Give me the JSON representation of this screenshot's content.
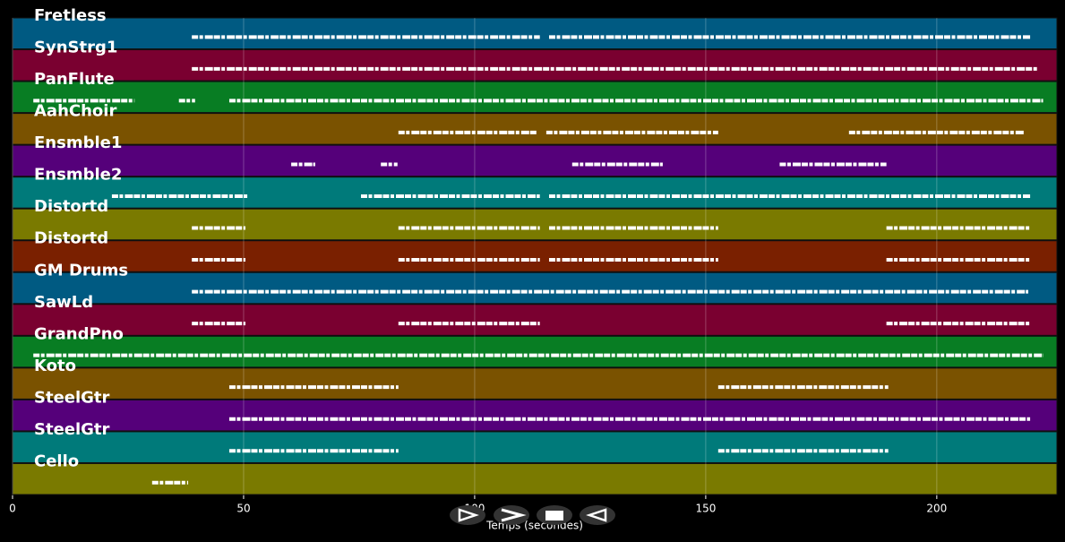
{
  "chart_data": {
    "type": "pianoroll",
    "xlabel": "Temps (secondes)",
    "xlim": [
      0,
      226
    ],
    "xticks": [
      0,
      50,
      100,
      150,
      200
    ],
    "grid": true,
    "tracks": [
      {
        "name": "Fretless",
        "color": "#005a82",
        "segments": [
          [
            38.8,
            114.1
          ],
          [
            116.1,
            220.2
          ]
        ]
      },
      {
        "name": "SynStrg1",
        "color": "#7a0030",
        "segments": [
          [
            38.8,
            222
          ]
        ]
      },
      {
        "name": "PanFlute",
        "color": "#087d23",
        "segments": [
          [
            4.5,
            26.4
          ],
          [
            36,
            39.5
          ],
          [
            46.9,
            223
          ]
        ]
      },
      {
        "name": "AahChoir",
        "color": "#7a5200",
        "segments": [
          [
            83.5,
            113.6
          ],
          [
            115.5,
            152.7
          ],
          [
            181,
            218.8
          ]
        ]
      },
      {
        "name": "Ensmble1",
        "color": "#55007a",
        "segments": [
          [
            60.3,
            65.5
          ],
          [
            79.7,
            83.3
          ],
          [
            121.1,
            140.7
          ],
          [
            166,
            189.1
          ]
        ]
      },
      {
        "name": "Ensmble2",
        "color": "#007a7a",
        "segments": [
          [
            21.5,
            50.8
          ],
          [
            75.4,
            114.1
          ],
          [
            116.1,
            220.2
          ]
        ]
      },
      {
        "name": "Distortd",
        "color": "#7a7a00",
        "segments": [
          [
            38.8,
            50.4
          ],
          [
            83.5,
            114.1
          ],
          [
            116.1,
            152.7
          ],
          [
            189.1,
            220.2
          ]
        ]
      },
      {
        "name": "Distortd",
        "color": "#7a2000",
        "segments": [
          [
            38.8,
            50.4
          ],
          [
            83.5,
            114.1
          ],
          [
            116.1,
            152.7
          ],
          [
            189.1,
            220.2
          ]
        ]
      },
      {
        "name": "GM Drums",
        "color": "#005a82",
        "segments": [
          [
            38.8,
            219.8
          ]
        ]
      },
      {
        "name": "SawLd",
        "color": "#7a0030",
        "segments": [
          [
            38.8,
            50.4
          ],
          [
            83.5,
            114.1
          ],
          [
            189.1,
            220.2
          ]
        ]
      },
      {
        "name": "GrandPno",
        "color": "#087d23",
        "segments": [
          [
            4.5,
            223
          ]
        ]
      },
      {
        "name": "Koto",
        "color": "#7a5200",
        "segments": [
          [
            46.9,
            83.5
          ],
          [
            152.7,
            189.5
          ]
        ]
      },
      {
        "name": "SteelGtr",
        "color": "#55007a",
        "segments": [
          [
            46.9,
            220.2
          ]
        ]
      },
      {
        "name": "SteelGtr",
        "color": "#007a7a",
        "segments": [
          [
            46.9,
            83.5
          ],
          [
            152.7,
            189.5
          ]
        ]
      },
      {
        "name": "Cello",
        "color": "#7a7a00",
        "segments": [
          [
            30.2,
            38
          ]
        ]
      }
    ]
  }
}
